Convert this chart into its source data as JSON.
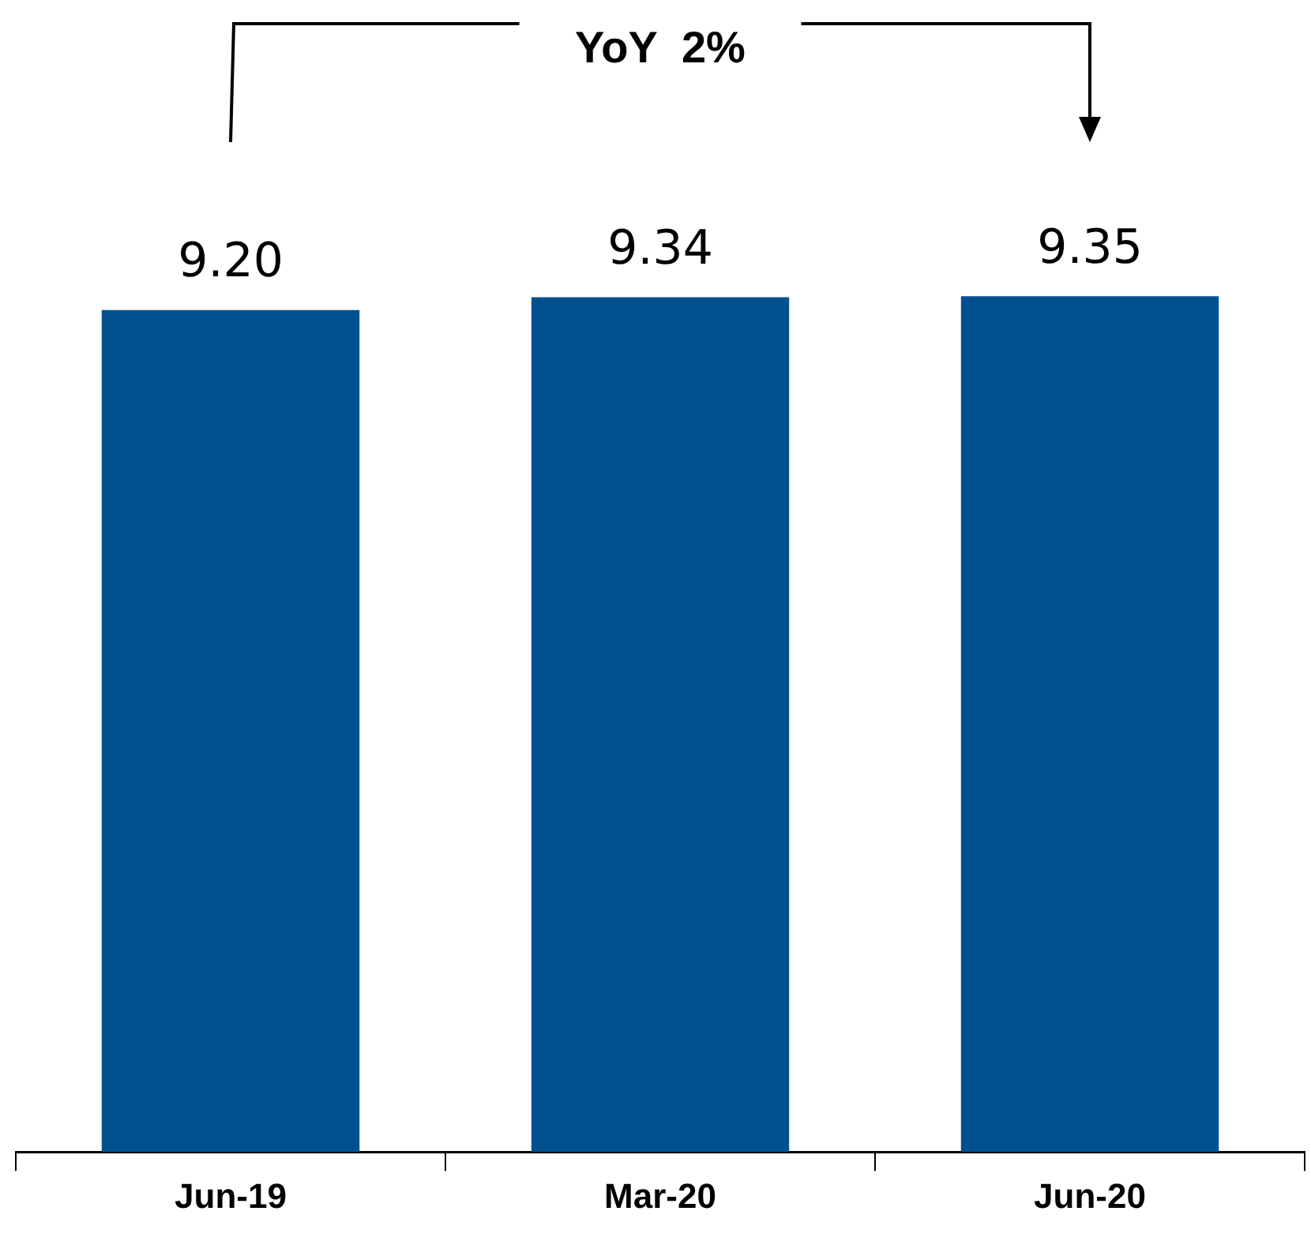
{
  "chart_data": {
    "type": "bar",
    "categories": [
      "Jun-19",
      "Mar-20",
      "Jun-20"
    ],
    "values": [
      9.2,
      9.34,
      9.35
    ],
    "value_labels": [
      "9.20",
      "9.34",
      "9.35"
    ],
    "color": "#00508f",
    "annotations": [
      "YoY  2%"
    ],
    "grid": false,
    "legend": false
  }
}
